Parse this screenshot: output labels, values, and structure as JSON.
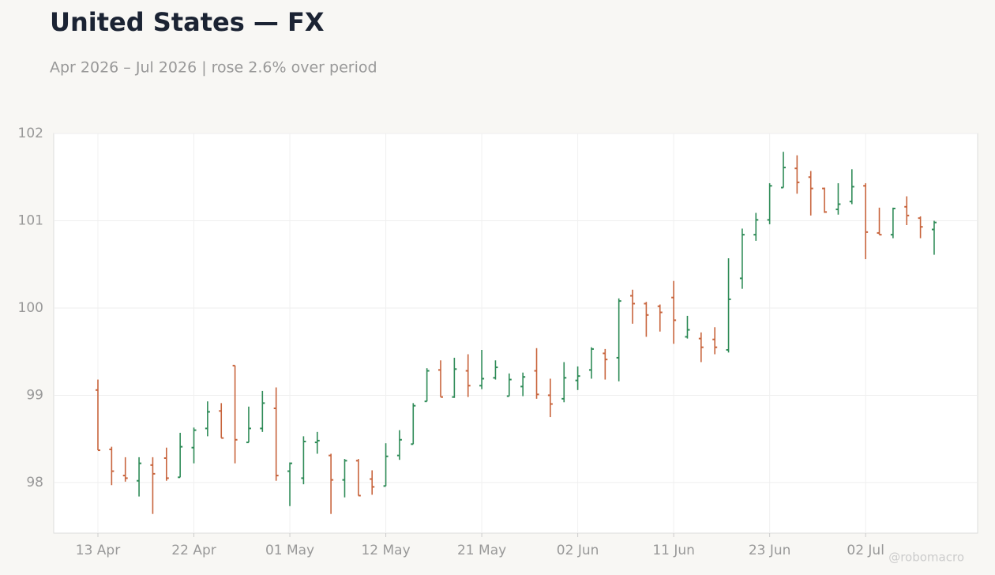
{
  "chart_data": {
    "type": "ohlc",
    "title": "United States — FX",
    "subtitle": "Apr 2026 – Jul 2026 | rose 2.6% over period",
    "watermark": "@robomacro",
    "categories": [
      "13 Apr",
      null,
      null,
      null,
      null,
      null,
      null,
      "22 Apr",
      null,
      null,
      null,
      null,
      null,
      null,
      "01 May",
      null,
      null,
      null,
      null,
      null,
      null,
      "12 May",
      null,
      null,
      null,
      null,
      null,
      null,
      "21 May",
      null,
      null,
      null,
      null,
      null,
      null,
      "02 Jun",
      null,
      null,
      null,
      null,
      null,
      null,
      "11 Jun",
      null,
      null,
      null,
      null,
      null,
      null,
      "23 Jun",
      null,
      null,
      null,
      null,
      null,
      null,
      "02 Jul",
      null,
      null,
      null,
      null,
      null
    ],
    "open": [
      99.06,
      98.38,
      98.08,
      98.02,
      98.2,
      98.28,
      98.06,
      98.4,
      98.62,
      98.82,
      99.34,
      98.46,
      98.62,
      98.85,
      98.13,
      98.05,
      98.46,
      98.31,
      98.03,
      98.25,
      98.04,
      97.96,
      98.31,
      98.44,
      98.93,
      99.29,
      98.98,
      99.28,
      99.11,
      99.2,
      98.99,
      99.1,
      99.28,
      99.0,
      98.96,
      99.17,
      99.29,
      99.48,
      99.43,
      100.14,
      100.05,
      100.02,
      100.12,
      99.67,
      99.65,
      99.64,
      99.52,
      100.34,
      100.84,
      101.01,
      101.38,
      101.6,
      101.5,
      101.37,
      101.13,
      101.22,
      101.4,
      100.86,
      100.84,
      101.16,
      101.03,
      100.9
    ],
    "high": [
      99.18,
      98.41,
      98.29,
      98.29,
      98.29,
      98.4,
      98.57,
      98.63,
      98.93,
      98.91,
      99.34,
      98.87,
      99.05,
      99.09,
      98.23,
      98.53,
      98.58,
      98.33,
      98.27,
      98.27,
      98.14,
      98.45,
      98.6,
      98.91,
      99.31,
      99.4,
      99.43,
      99.47,
      99.52,
      99.4,
      99.25,
      99.26,
      99.54,
      99.19,
      99.38,
      99.33,
      99.55,
      99.53,
      100.11,
      100.21,
      100.07,
      100.04,
      100.31,
      99.91,
      99.72,
      99.78,
      100.57,
      100.91,
      101.09,
      101.43,
      101.79,
      101.75,
      101.57,
      101.38,
      101.43,
      101.59,
      101.43,
      101.15,
      101.15,
      101.28,
      101.05,
      101.0
    ],
    "low": [
      98.37,
      97.97,
      98.01,
      97.84,
      97.64,
      98.02,
      98.06,
      98.22,
      98.53,
      98.51,
      98.22,
      98.46,
      98.58,
      98.02,
      97.73,
      97.98,
      98.33,
      97.64,
      97.83,
      97.85,
      97.86,
      97.96,
      98.26,
      98.44,
      98.93,
      98.98,
      98.97,
      98.98,
      99.07,
      99.18,
      98.99,
      98.99,
      98.96,
      98.75,
      98.92,
      99.06,
      99.19,
      99.18,
      99.16,
      99.82,
      99.67,
      99.73,
      99.59,
      99.65,
      99.38,
      99.47,
      99.49,
      100.22,
      100.77,
      100.96,
      101.38,
      101.31,
      101.06,
      101.09,
      101.07,
      101.19,
      100.56,
      100.84,
      100.8,
      100.95,
      100.8,
      100.61
    ],
    "close": [
      98.37,
      98.13,
      98.05,
      98.22,
      98.1,
      98.05,
      98.41,
      98.6,
      98.81,
      98.51,
      98.49,
      98.62,
      98.91,
      98.08,
      98.22,
      98.47,
      98.48,
      98.03,
      98.25,
      97.85,
      97.95,
      98.3,
      98.49,
      98.88,
      99.28,
      98.98,
      99.3,
      99.11,
      99.19,
      99.32,
      99.18,
      99.21,
      99.01,
      98.9,
      99.2,
      99.22,
      99.53,
      99.41,
      100.08,
      100.05,
      99.92,
      99.95,
      99.86,
      99.75,
      99.55,
      99.55,
      100.1,
      100.84,
      101.01,
      101.4,
      101.61,
      101.44,
      101.37,
      101.1,
      101.19,
      101.39,
      100.87,
      100.84,
      101.14,
      101.06,
      100.93,
      100.98
    ],
    "up_color": "#2e8b57",
    "down_color": "#c8643c",
    "ylim": [
      97.42,
      102
    ],
    "yticks": [
      98,
      99,
      100,
      101,
      102
    ],
    "grid": true
  }
}
